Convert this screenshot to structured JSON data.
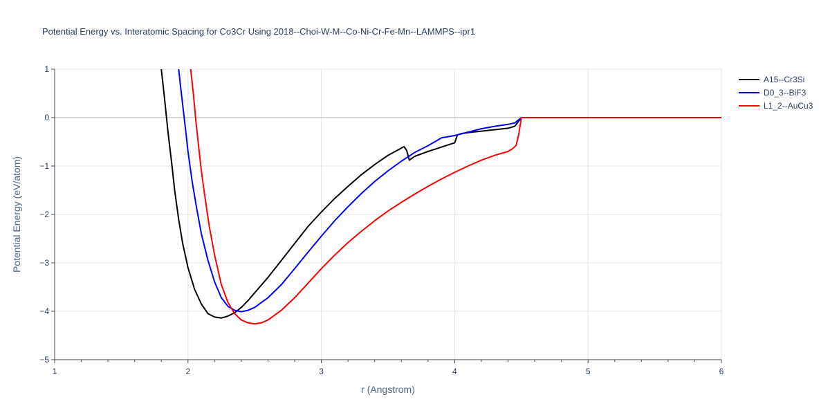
{
  "chart_data": {
    "type": "line",
    "title": "Potential Energy vs. Interatomic Spacing for Co3Cr Using 2018--Choi-W-M--Co-Ni-Cr-Fe-Mn--LAMMPS--ipr1",
    "xlabel": "r (Angstrom)",
    "ylabel": "Potential Energy (eV/atom)",
    "xlim": [
      1,
      6
    ],
    "ylim": [
      -5,
      1
    ],
    "xticks": [
      1,
      2,
      3,
      4,
      5,
      6
    ],
    "yticks": [
      -5,
      -4,
      -3,
      -2,
      -1,
      0,
      1
    ],
    "grid": true,
    "legend_position": "top-right",
    "series": [
      {
        "name": "A15--Cr3Si",
        "color": "#000000",
        "x": [
          1.8,
          1.82,
          1.85,
          1.88,
          1.9,
          1.93,
          1.96,
          2.0,
          2.05,
          2.1,
          2.15,
          2.2,
          2.25,
          2.3,
          2.35,
          2.4,
          2.45,
          2.5,
          2.6,
          2.7,
          2.8,
          2.9,
          3.0,
          3.1,
          3.2,
          3.3,
          3.4,
          3.5,
          3.6,
          3.62,
          3.64,
          3.66,
          3.7,
          3.8,
          3.9,
          4.0,
          4.02,
          4.05,
          4.1,
          4.2,
          4.3,
          4.4,
          4.45,
          4.5,
          5.0,
          6.0
        ],
        "y": [
          1.0,
          0.5,
          -0.3,
          -1.0,
          -1.5,
          -2.1,
          -2.6,
          -3.1,
          -3.55,
          -3.85,
          -4.05,
          -4.12,
          -4.14,
          -4.1,
          -4.03,
          -3.92,
          -3.78,
          -3.62,
          -3.3,
          -2.95,
          -2.6,
          -2.25,
          -1.95,
          -1.67,
          -1.42,
          -1.18,
          -0.97,
          -0.78,
          -0.63,
          -0.6,
          -0.68,
          -0.88,
          -0.8,
          -0.7,
          -0.61,
          -0.52,
          -0.36,
          -0.33,
          -0.31,
          -0.28,
          -0.25,
          -0.22,
          -0.18,
          0.0,
          0.0,
          0.0
        ]
      },
      {
        "name": "D0_3--BiF3",
        "color": "#0000ff",
        "x": [
          1.93,
          1.95,
          1.98,
          2.0,
          2.03,
          2.06,
          2.1,
          2.15,
          2.2,
          2.25,
          2.3,
          2.35,
          2.4,
          2.45,
          2.5,
          2.6,
          2.7,
          2.8,
          2.9,
          3.0,
          3.1,
          3.2,
          3.3,
          3.4,
          3.5,
          3.6,
          3.7,
          3.8,
          3.87,
          3.9,
          4.0,
          4.1,
          4.2,
          4.3,
          4.4,
          4.45,
          4.5,
          5.0,
          6.0
        ],
        "y": [
          1.0,
          0.5,
          -0.2,
          -0.7,
          -1.3,
          -1.8,
          -2.4,
          -2.95,
          -3.4,
          -3.72,
          -3.9,
          -3.98,
          -4.01,
          -3.98,
          -3.92,
          -3.72,
          -3.45,
          -3.12,
          -2.78,
          -2.45,
          -2.13,
          -1.84,
          -1.57,
          -1.32,
          -1.1,
          -0.9,
          -0.72,
          -0.58,
          -0.47,
          -0.42,
          -0.37,
          -0.3,
          -0.23,
          -0.18,
          -0.14,
          -0.11,
          0.0,
          0.0,
          0.0
        ]
      },
      {
        "name": "L1_2--AuCu3",
        "color": "#ff0000",
        "x": [
          2.02,
          2.04,
          2.06,
          2.08,
          2.1,
          2.13,
          2.16,
          2.2,
          2.25,
          2.3,
          2.35,
          2.4,
          2.45,
          2.5,
          2.55,
          2.6,
          2.7,
          2.8,
          2.9,
          3.0,
          3.1,
          3.2,
          3.3,
          3.4,
          3.5,
          3.6,
          3.7,
          3.8,
          3.9,
          4.0,
          4.1,
          4.2,
          4.3,
          4.4,
          4.43,
          4.46,
          4.48,
          4.5,
          5.0,
          6.0
        ],
        "y": [
          1.0,
          0.5,
          -0.1,
          -0.6,
          -1.1,
          -1.7,
          -2.25,
          -2.85,
          -3.45,
          -3.82,
          -4.05,
          -4.18,
          -4.24,
          -4.26,
          -4.24,
          -4.18,
          -3.98,
          -3.72,
          -3.42,
          -3.12,
          -2.84,
          -2.58,
          -2.35,
          -2.13,
          -1.93,
          -1.75,
          -1.58,
          -1.42,
          -1.27,
          -1.13,
          -1.0,
          -0.88,
          -0.78,
          -0.7,
          -0.65,
          -0.58,
          -0.35,
          0.0,
          0.0,
          0.0
        ]
      }
    ]
  }
}
